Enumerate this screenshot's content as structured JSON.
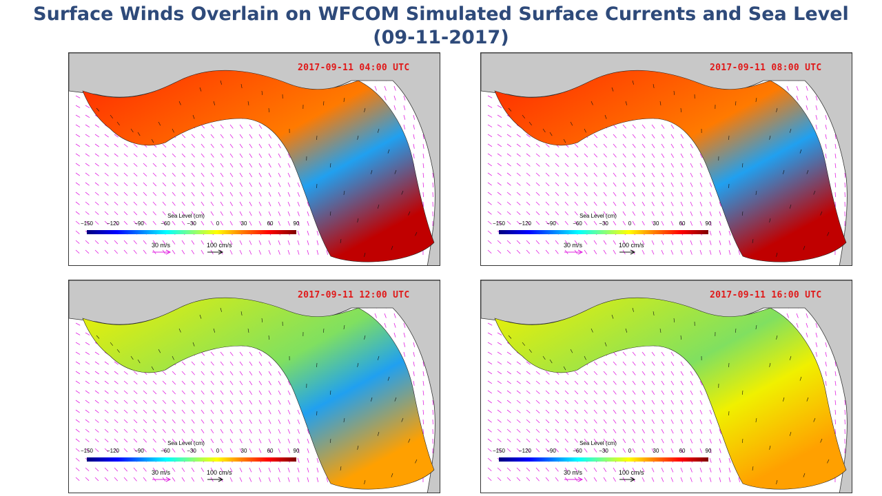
{
  "title_line1": "Surface Winds Overlain on WFCOM Simulated Surface Currents and Sea Level",
  "title_line2": "(09-11-2017)",
  "legend": {
    "title": "Sea Level (cm)",
    "ticks": [
      "−150",
      "−120",
      "−90",
      "−60",
      "−30",
      "0",
      "30",
      "60",
      "90"
    ],
    "wind_scale": "30 m/s",
    "current_scale": "100 cm/s"
  },
  "colors": {
    "wind_vectors": "#e020e0",
    "current_vectors": "#111111",
    "land": "#c8c8c8",
    "timestamp": "#e01818",
    "title": "#2e4a7a"
  },
  "panels": [
    {
      "timestamp": "2017-09-11 04:00 UTC",
      "northeast_level": "low",
      "west_level": "high"
    },
    {
      "timestamp": "2017-09-11 08:00 UTC",
      "northeast_level": "low",
      "west_level": "high"
    },
    {
      "timestamp": "2017-09-11 12:00 UTC",
      "northeast_level": "low",
      "west_level": "medium"
    },
    {
      "timestamp": "2017-09-11 16:00 UTC",
      "northeast_level": "medium",
      "west_level": "medium"
    }
  ]
}
